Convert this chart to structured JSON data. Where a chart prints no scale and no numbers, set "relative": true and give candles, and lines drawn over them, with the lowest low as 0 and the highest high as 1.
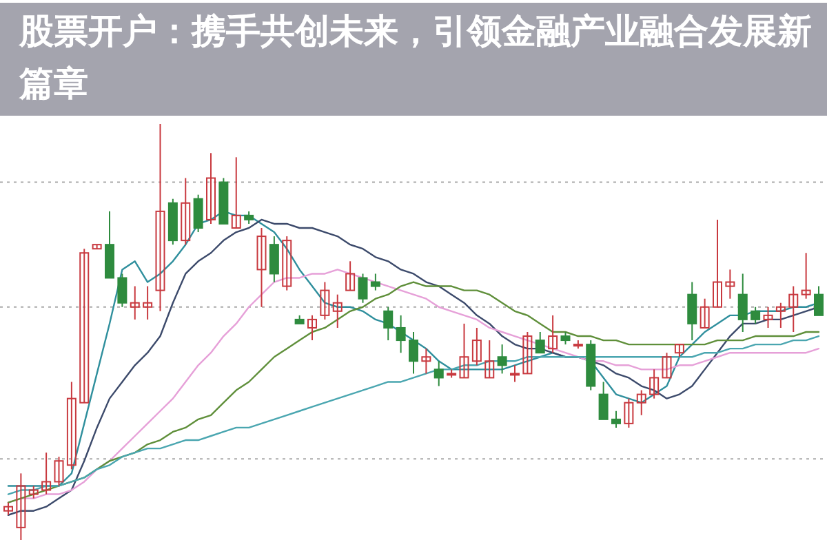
{
  "chart_data": {
    "type": "candlestick",
    "title": "股票开户：携手共创未来，引领金融产业融合发展新篇章",
    "relative": true,
    "grid": "y",
    "categories": [
      null,
      null,
      null,
      null,
      null,
      null,
      null,
      null,
      null,
      null,
      null,
      null,
      null,
      null,
      null,
      null,
      null,
      null,
      null,
      null,
      null,
      null,
      null,
      null,
      null,
      null,
      null,
      null,
      null,
      null,
      null,
      null,
      null,
      null,
      null,
      null,
      null,
      null,
      null,
      null,
      null,
      null,
      null,
      null,
      null,
      null,
      null,
      null,
      null,
      null,
      null,
      null,
      null,
      null,
      null,
      null,
      null,
      null,
      null,
      null,
      null,
      null,
      null,
      null,
      null
    ],
    "ohlc": [
      [
        0.07,
        0.09,
        0.06,
        0.08
      ],
      [
        0.03,
        0.16,
        0.0,
        0.13
      ],
      [
        0.11,
        0.13,
        0.1,
        0.12
      ],
      [
        0.12,
        0.21,
        0.11,
        0.14
      ],
      [
        0.14,
        0.2,
        0.13,
        0.19
      ],
      [
        0.18,
        0.38,
        0.17,
        0.34
      ],
      [
        0.33,
        0.7,
        0.33,
        0.69
      ],
      [
        0.7,
        0.71,
        0.7,
        0.71
      ],
      [
        0.71,
        0.79,
        0.63,
        0.63
      ],
      [
        0.63,
        0.64,
        0.56,
        0.57
      ],
      [
        0.56,
        0.61,
        0.53,
        0.57
      ],
      [
        0.56,
        0.61,
        0.53,
        0.57
      ],
      [
        0.6,
        1.0,
        0.55,
        0.79
      ],
      [
        0.81,
        0.82,
        0.71,
        0.72
      ],
      [
        0.72,
        0.87,
        0.71,
        0.81
      ],
      [
        0.82,
        0.83,
        0.74,
        0.75
      ],
      [
        0.77,
        0.93,
        0.76,
        0.87
      ],
      [
        0.86,
        0.87,
        0.76,
        0.76
      ],
      [
        0.75,
        0.92,
        0.75,
        0.78
      ],
      [
        0.78,
        0.79,
        0.76,
        0.77
      ],
      [
        0.65,
        0.75,
        0.56,
        0.73
      ],
      [
        0.71,
        0.73,
        0.62,
        0.64
      ],
      [
        0.61,
        0.73,
        0.6,
        0.72
      ],
      [
        0.53,
        0.54,
        0.52,
        0.52
      ],
      [
        0.51,
        0.54,
        0.48,
        0.53
      ],
      [
        0.54,
        0.62,
        0.53,
        0.6
      ],
      [
        0.55,
        0.59,
        0.51,
        0.57
      ],
      [
        0.6,
        0.67,
        0.6,
        0.64
      ],
      [
        0.63,
        0.64,
        0.57,
        0.58
      ],
      [
        0.62,
        0.64,
        0.6,
        0.61
      ],
      [
        0.55,
        0.56,
        0.48,
        0.51
      ],
      [
        0.51,
        0.54,
        0.45,
        0.48
      ],
      [
        0.48,
        0.5,
        0.4,
        0.43
      ],
      [
        0.43,
        0.46,
        0.4,
        0.44
      ],
      [
        0.41,
        0.43,
        0.37,
        0.39
      ],
      [
        0.4,
        0.41,
        0.39,
        0.4
      ],
      [
        0.39,
        0.52,
        0.39,
        0.44
      ],
      [
        0.43,
        0.51,
        0.42,
        0.48
      ],
      [
        0.39,
        0.48,
        0.39,
        0.43
      ],
      [
        0.44,
        0.47,
        0.4,
        0.42
      ],
      [
        0.4,
        0.42,
        0.38,
        0.4
      ],
      [
        0.4,
        0.5,
        0.4,
        0.49
      ],
      [
        0.48,
        0.5,
        0.45,
        0.45
      ],
      [
        0.46,
        0.54,
        0.45,
        0.49
      ],
      [
        0.49,
        0.5,
        0.47,
        0.48
      ],
      [
        0.47,
        0.48,
        0.46,
        0.47
      ],
      [
        0.47,
        0.48,
        0.36,
        0.37
      ],
      [
        0.35,
        0.38,
        0.29,
        0.29
      ],
      [
        0.29,
        0.31,
        0.27,
        0.28
      ],
      [
        0.28,
        0.34,
        0.27,
        0.33
      ],
      [
        0.33,
        0.36,
        0.3,
        0.35
      ],
      [
        0.35,
        0.41,
        0.34,
        0.39
      ],
      [
        0.39,
        0.45,
        0.39,
        0.44
      ],
      [
        0.45,
        0.47,
        0.44,
        0.47
      ],
      [
        0.59,
        0.62,
        0.48,
        0.52
      ],
      [
        0.51,
        0.58,
        0.51,
        0.56
      ],
      [
        0.56,
        0.77,
        0.56,
        0.62
      ],
      [
        0.61,
        0.65,
        0.58,
        0.62
      ],
      [
        0.59,
        0.64,
        0.5,
        0.53
      ],
      [
        0.55,
        0.56,
        0.52,
        0.53
      ],
      [
        0.53,
        0.56,
        0.51,
        0.54
      ],
      [
        0.55,
        0.57,
        0.51,
        0.56
      ],
      [
        0.56,
        0.61,
        0.5,
        0.59
      ],
      [
        0.59,
        0.69,
        0.58,
        0.6
      ],
      [
        0.59,
        0.61,
        0.54,
        0.54
      ]
    ],
    "series": [
      {
        "type": "line",
        "color": "#2f8f9d",
        "values": [
          0.13,
          0.13,
          0.13,
          0.13,
          0.13,
          0.16,
          0.28,
          0.4,
          0.52,
          0.65,
          0.67,
          0.62,
          0.64,
          0.67,
          0.71,
          0.76,
          0.77,
          0.79,
          0.78,
          0.78,
          0.76,
          0.74,
          0.7,
          0.65,
          0.61,
          0.57,
          0.56,
          0.56,
          0.55,
          0.53,
          0.52,
          0.5,
          0.48,
          0.46,
          0.43,
          0.41,
          0.41,
          0.41,
          0.41,
          0.41,
          0.42,
          0.43,
          0.44,
          0.45,
          0.44,
          0.44,
          0.43,
          0.39,
          0.35,
          0.34,
          0.33,
          0.35,
          0.37,
          0.44,
          0.47,
          0.5,
          0.52,
          0.54,
          0.54,
          0.55,
          0.55,
          0.55,
          0.56,
          0.56,
          0.57
        ]
      },
      {
        "type": "line",
        "color": "#3c4a6b",
        "values": [
          0.06,
          0.07,
          0.07,
          0.08,
          0.1,
          0.12,
          0.19,
          0.27,
          0.34,
          0.38,
          0.42,
          0.45,
          0.49,
          0.57,
          0.64,
          0.67,
          0.69,
          0.72,
          0.74,
          0.75,
          0.77,
          0.76,
          0.76,
          0.75,
          0.75,
          0.74,
          0.73,
          0.71,
          0.7,
          0.68,
          0.67,
          0.65,
          0.64,
          0.62,
          0.61,
          0.59,
          0.57,
          0.54,
          0.52,
          0.49,
          0.47,
          0.46,
          0.46,
          0.45,
          0.44,
          0.44,
          0.43,
          0.42,
          0.4,
          0.39,
          0.37,
          0.36,
          0.34,
          0.35,
          0.37,
          0.41,
          0.45,
          0.49,
          0.52,
          0.52,
          0.53,
          0.53,
          0.54,
          0.55,
          0.56
        ]
      },
      {
        "type": "line",
        "color": "#e6a0d8",
        "values": [
          0.09,
          0.1,
          0.1,
          0.11,
          0.11,
          0.12,
          0.14,
          0.17,
          0.19,
          0.22,
          0.25,
          0.28,
          0.31,
          0.34,
          0.38,
          0.42,
          0.45,
          0.49,
          0.52,
          0.56,
          0.59,
          0.62,
          0.63,
          0.63,
          0.64,
          0.64,
          0.65,
          0.64,
          0.63,
          0.62,
          0.61,
          0.6,
          0.59,
          0.58,
          0.56,
          0.55,
          0.54,
          0.53,
          0.51,
          0.5,
          0.49,
          0.48,
          0.47,
          0.46,
          0.45,
          0.44,
          0.43,
          0.43,
          0.42,
          0.42,
          0.41,
          0.41,
          0.41,
          0.42,
          0.42,
          0.43,
          0.44,
          0.45,
          0.45,
          0.45,
          0.45,
          0.45,
          0.45,
          0.45,
          0.46
        ]
      },
      {
        "type": "line",
        "color": "#5f8f3a",
        "values": [
          0.09,
          0.1,
          0.11,
          0.12,
          0.13,
          0.14,
          0.15,
          0.17,
          0.19,
          0.2,
          0.21,
          0.23,
          0.24,
          0.26,
          0.27,
          0.29,
          0.3,
          0.33,
          0.36,
          0.38,
          0.41,
          0.44,
          0.46,
          0.48,
          0.5,
          0.51,
          0.53,
          0.55,
          0.56,
          0.58,
          0.59,
          0.61,
          0.62,
          0.61,
          0.61,
          0.61,
          0.6,
          0.6,
          0.59,
          0.57,
          0.55,
          0.54,
          0.52,
          0.5,
          0.5,
          0.49,
          0.49,
          0.48,
          0.48,
          0.47,
          0.47,
          0.47,
          0.47,
          0.47,
          0.47,
          0.47,
          0.48,
          0.48,
          0.48,
          0.49,
          0.49,
          0.49,
          0.49,
          0.5,
          0.5
        ]
      },
      {
        "type": "line",
        "color": "#4aa6b0",
        "values": [
          0.11,
          0.12,
          0.12,
          0.13,
          0.13,
          0.14,
          0.15,
          0.17,
          0.18,
          0.2,
          0.21,
          0.22,
          0.22,
          0.23,
          0.24,
          0.24,
          0.25,
          0.26,
          0.27,
          0.27,
          0.28,
          0.29,
          0.3,
          0.31,
          0.32,
          0.33,
          0.34,
          0.35,
          0.36,
          0.37,
          0.38,
          0.38,
          0.39,
          0.4,
          0.41,
          0.41,
          0.42,
          0.42,
          0.43,
          0.43,
          0.43,
          0.44,
          0.44,
          0.44,
          0.44,
          0.44,
          0.44,
          0.44,
          0.44,
          0.44,
          0.44,
          0.44,
          0.44,
          0.44,
          0.44,
          0.45,
          0.45,
          0.46,
          0.46,
          0.47,
          0.47,
          0.47,
          0.48,
          0.48,
          0.49
        ]
      }
    ]
  }
}
